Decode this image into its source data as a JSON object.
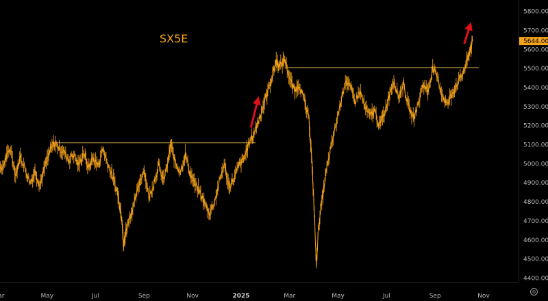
{
  "chart_data": {
    "type": "line",
    "title": "SX5E",
    "current_price_label": "5644.00",
    "ylim": [
      4380,
      5860
    ],
    "y_ticks": [
      4400,
      4500,
      4600,
      4700,
      4800,
      4900,
      5000,
      5100,
      5200,
      5300,
      5400,
      5500,
      5600,
      5700,
      5800
    ],
    "y_tick_labels": [
      "4400.00",
      "4500.00",
      "4600.00",
      "4700.00",
      "4800.00",
      "4900.00",
      "5000.00",
      "5100.00",
      "5200.00",
      "5300.00",
      "5400.00",
      "5500.00",
      "5600.00",
      "5700.00",
      "5800.00"
    ],
    "x_tick_labels": [
      {
        "label": "Mar",
        "month": 0,
        "bold": false
      },
      {
        "label": "May",
        "month": 2,
        "bold": false
      },
      {
        "label": "Jul",
        "month": 4,
        "bold": false
      },
      {
        "label": "Sep",
        "month": 6,
        "bold": false
      },
      {
        "label": "Nov",
        "month": 8,
        "bold": false
      },
      {
        "label": "2025",
        "month": 10,
        "bold": true
      },
      {
        "label": "Mar",
        "month": 12,
        "bold": false
      },
      {
        "label": "May",
        "month": 14,
        "bold": false
      },
      {
        "label": "Jul",
        "month": 16,
        "bold": false
      },
      {
        "label": "Sep",
        "month": 18,
        "bold": false
      },
      {
        "label": "Nov",
        "month": 20,
        "bold": false
      }
    ],
    "series": [
      {
        "color": "#f5a31a",
        "points": [
          [
            -0.9,
            4950
          ],
          [
            -0.7,
            4920
          ],
          [
            -0.5,
            5000
          ],
          [
            -0.3,
            4990
          ],
          [
            -0.1,
            5050
          ],
          [
            0.1,
            4960
          ],
          [
            0.3,
            5030
          ],
          [
            0.5,
            5080
          ],
          [
            0.7,
            4940
          ],
          [
            0.9,
            5040
          ],
          [
            1.1,
            4970
          ],
          [
            1.3,
            4900
          ],
          [
            1.5,
            4960
          ],
          [
            1.7,
            4890
          ],
          [
            1.9,
            4980
          ],
          [
            2.1,
            5060
          ],
          [
            2.3,
            5110
          ],
          [
            2.5,
            5080
          ],
          [
            2.7,
            5060
          ],
          [
            2.9,
            5020
          ],
          [
            3.1,
            5050
          ],
          [
            3.3,
            4990
          ],
          [
            3.5,
            5060
          ],
          [
            3.7,
            4980
          ],
          [
            3.9,
            5030
          ],
          [
            4.1,
            4990
          ],
          [
            4.3,
            5080
          ],
          [
            4.5,
            5000
          ],
          [
            4.7,
            4930
          ],
          [
            4.9,
            4850
          ],
          [
            5.0,
            4780
          ],
          [
            5.1,
            4700
          ],
          [
            5.15,
            4560
          ],
          [
            5.25,
            4650
          ],
          [
            5.4,
            4720
          ],
          [
            5.6,
            4790
          ],
          [
            5.8,
            4900
          ],
          [
            6.0,
            4970
          ],
          [
            6.2,
            4820
          ],
          [
            6.4,
            4900
          ],
          [
            6.6,
            4990
          ],
          [
            6.8,
            4910
          ],
          [
            7.0,
            5020
          ],
          [
            7.1,
            5100
          ],
          [
            7.3,
            5000
          ],
          [
            7.5,
            4960
          ],
          [
            7.7,
            5050
          ],
          [
            7.9,
            4950
          ],
          [
            8.1,
            4890
          ],
          [
            8.3,
            4850
          ],
          [
            8.5,
            4790
          ],
          [
            8.7,
            4740
          ],
          [
            8.9,
            4800
          ],
          [
            9.1,
            4900
          ],
          [
            9.3,
            5000
          ],
          [
            9.5,
            4880
          ],
          [
            9.7,
            4920
          ],
          [
            9.9,
            4990
          ],
          [
            10.1,
            5020
          ],
          [
            10.3,
            5100
          ],
          [
            10.5,
            5150
          ],
          [
            10.7,
            5220
          ],
          [
            10.9,
            5300
          ],
          [
            11.1,
            5380
          ],
          [
            11.3,
            5470
          ],
          [
            11.45,
            5540
          ],
          [
            11.6,
            5510
          ],
          [
            11.8,
            5550
          ],
          [
            12.0,
            5450
          ],
          [
            12.2,
            5380
          ],
          [
            12.4,
            5420
          ],
          [
            12.6,
            5330
          ],
          [
            12.8,
            5230
          ],
          [
            12.9,
            5050
          ],
          [
            13.0,
            4800
          ],
          [
            13.1,
            4470
          ],
          [
            13.2,
            4680
          ],
          [
            13.35,
            4820
          ],
          [
            13.5,
            4950
          ],
          [
            13.7,
            5080
          ],
          [
            13.9,
            5200
          ],
          [
            14.1,
            5320
          ],
          [
            14.3,
            5440
          ],
          [
            14.5,
            5400
          ],
          [
            14.7,
            5330
          ],
          [
            14.9,
            5380
          ],
          [
            15.1,
            5300
          ],
          [
            15.3,
            5250
          ],
          [
            15.5,
            5280
          ],
          [
            15.7,
            5200
          ],
          [
            15.9,
            5260
          ],
          [
            16.1,
            5360
          ],
          [
            16.3,
            5440
          ],
          [
            16.5,
            5350
          ],
          [
            16.7,
            5420
          ],
          [
            16.9,
            5300
          ],
          [
            17.1,
            5240
          ],
          [
            17.3,
            5310
          ],
          [
            17.5,
            5420
          ],
          [
            17.7,
            5380
          ],
          [
            17.9,
            5500
          ],
          [
            18.1,
            5450
          ],
          [
            18.3,
            5360
          ],
          [
            18.5,
            5310
          ],
          [
            18.7,
            5370
          ],
          [
            18.9,
            5420
          ],
          [
            19.1,
            5460
          ],
          [
            19.3,
            5530
          ],
          [
            19.45,
            5600
          ],
          [
            19.55,
            5644
          ]
        ]
      }
    ],
    "horizontal_lines": [
      {
        "x_start": 2.2,
        "x_end": 10.6,
        "y": 5110
      },
      {
        "x_start": 11.9,
        "x_end": 19.8,
        "y": 5505
      }
    ],
    "annotations": [
      {
        "type": "arrow",
        "color": "#e0101a",
        "from": [
          10.4,
          5190
        ],
        "to": [
          10.7,
          5340
        ]
      },
      {
        "type": "arrow",
        "color": "#e0101a",
        "from": [
          19.2,
          5630
        ],
        "to": [
          19.45,
          5730
        ]
      }
    ],
    "grid": false,
    "legend": "none"
  }
}
